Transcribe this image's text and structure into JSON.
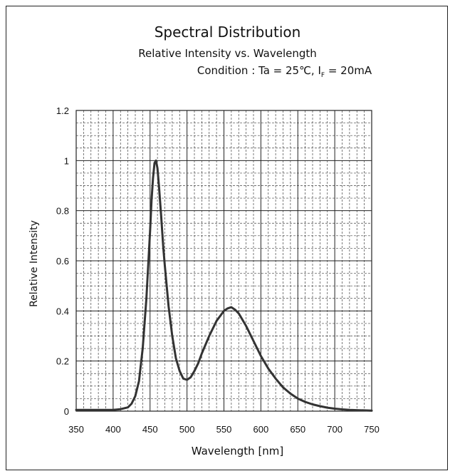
{
  "chart_data": {
    "type": "line",
    "title": "Spectral Distribution",
    "subtitle": "Relative Intensity vs. Wavelength",
    "condition": {
      "prefix": "Condition : Ta = 25℃, I",
      "subscript": "F",
      "suffix": " = 20mA"
    },
    "xlabel": "Wavelength [nm]",
    "ylabel": "Relative Intensity",
    "xlim": [
      350,
      750
    ],
    "ylim": [
      0,
      1.2
    ],
    "x_ticks": [
      350,
      400,
      450,
      500,
      550,
      600,
      650,
      700,
      750
    ],
    "y_ticks": [
      0,
      0.2,
      0.4,
      0.6,
      0.8,
      1,
      1.2
    ],
    "y_tick_labels": [
      "0",
      "0.2",
      "0.4",
      "0.6",
      "0.8",
      "1",
      "1.2"
    ],
    "grid": true,
    "series": [
      {
        "x": [
          350,
          380,
          400,
          410,
          420,
          425,
          430,
          435,
          440,
          445,
          450,
          452,
          454,
          456,
          458,
          460,
          462,
          465,
          468,
          470,
          475,
          480,
          485,
          490,
          495,
          500,
          505,
          510,
          515,
          520,
          530,
          540,
          550,
          555,
          560,
          565,
          570,
          580,
          590,
          600,
          610,
          620,
          630,
          640,
          650,
          660,
          670,
          680,
          690,
          700,
          710,
          720,
          730,
          740,
          750
        ],
        "y": [
          0.005,
          0.005,
          0.005,
          0.008,
          0.015,
          0.03,
          0.06,
          0.12,
          0.25,
          0.45,
          0.72,
          0.84,
          0.93,
          0.99,
          1.0,
          0.97,
          0.9,
          0.78,
          0.65,
          0.58,
          0.42,
          0.3,
          0.21,
          0.16,
          0.13,
          0.125,
          0.135,
          0.16,
          0.19,
          0.23,
          0.3,
          0.36,
          0.4,
          0.41,
          0.415,
          0.405,
          0.39,
          0.34,
          0.28,
          0.22,
          0.17,
          0.13,
          0.095,
          0.07,
          0.05,
          0.037,
          0.027,
          0.02,
          0.014,
          0.01,
          0.007,
          0.005,
          0.004,
          0.003,
          0.002
        ],
        "color": "#333333"
      }
    ]
  }
}
